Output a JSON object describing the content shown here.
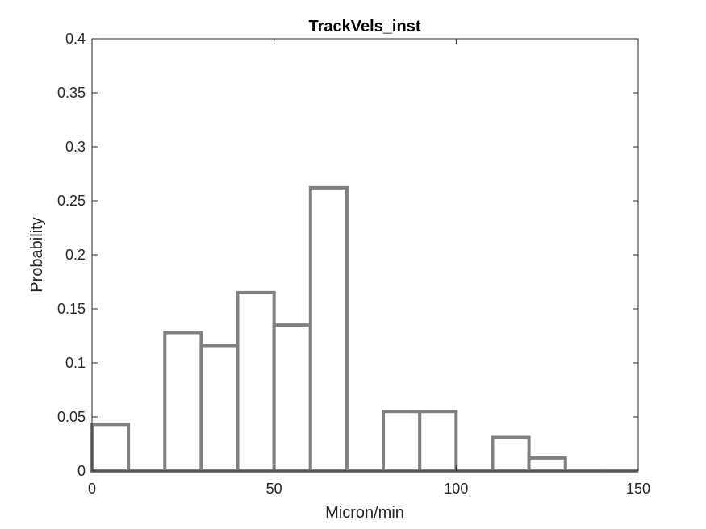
{
  "chart_data": {
    "type": "bar",
    "title": "TrackVels_inst",
    "xlabel": "Micron/min",
    "ylabel": "Probability",
    "bin_edges": [
      0,
      10,
      20,
      30,
      40,
      50,
      60,
      70,
      80,
      90,
      100,
      110,
      120,
      130,
      140,
      150
    ],
    "values": [
      0.043,
      0,
      0.128,
      0.116,
      0.165,
      0.135,
      0.262,
      0,
      0.055,
      0.055,
      0,
      0.031,
      0.012,
      0,
      0
    ],
    "xlim": [
      0,
      150
    ],
    "ylim": [
      0,
      0.4
    ],
    "xticks": [
      0,
      50,
      100,
      150
    ],
    "xtick_labels": [
      "0",
      "50",
      "100",
      "150"
    ],
    "yticks": [
      0,
      0.05,
      0.1,
      0.15,
      0.2,
      0.25,
      0.3,
      0.35,
      0.4
    ],
    "ytick_labels": [
      "0",
      "0.05",
      "0.1",
      "0.15",
      "0.2",
      "0.25",
      "0.3",
      "0.35",
      "0.4"
    ],
    "grid": false,
    "style": "stairs",
    "edge_color": "#808080",
    "face_color": "#ffffff"
  }
}
